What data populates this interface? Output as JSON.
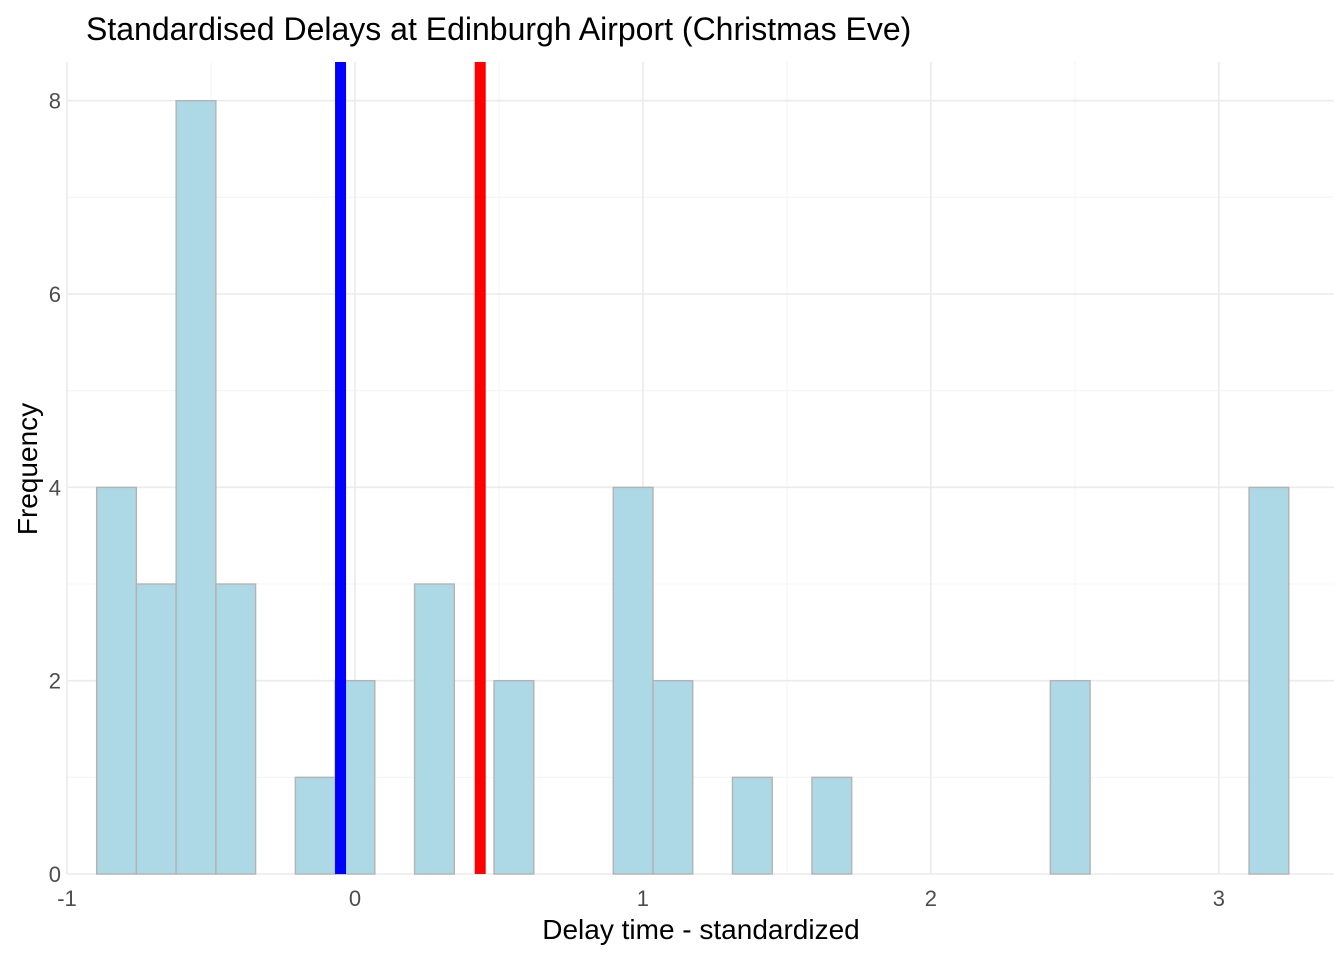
{
  "chart_data": {
    "type": "histogram",
    "title": "Standardised Delays at Edinburgh Airport (Christmas Eve)",
    "xlabel": "Delay time - standardized",
    "ylabel": "Frequency",
    "xlim": [
      -1.0,
      3.4
    ],
    "ylim": [
      0,
      8.4
    ],
    "x_ticks": [
      -1,
      0,
      1,
      2,
      3
    ],
    "x_tick_labels": [
      "-1",
      "0",
      "1",
      "2",
      "3"
    ],
    "y_ticks": [
      0,
      2,
      4,
      6,
      8
    ],
    "y_tick_labels": [
      "0",
      "2",
      "4",
      "6",
      "8"
    ],
    "grid": true,
    "bin_width": 0.138,
    "bins": [
      {
        "start": -0.897,
        "count": 4
      },
      {
        "start": -0.759,
        "count": 3
      },
      {
        "start": -0.621,
        "count": 8
      },
      {
        "start": -0.483,
        "count": 3
      },
      {
        "start": -0.345,
        "count": 0
      },
      {
        "start": -0.207,
        "count": 1
      },
      {
        "start": -0.069,
        "count": 2
      },
      {
        "start": 0.069,
        "count": 0
      },
      {
        "start": 0.207,
        "count": 3
      },
      {
        "start": 0.345,
        "count": 0
      },
      {
        "start": 0.483,
        "count": 2
      },
      {
        "start": 0.621,
        "count": 0
      },
      {
        "start": 0.759,
        "count": 0
      },
      {
        "start": 0.897,
        "count": 4
      },
      {
        "start": 1.035,
        "count": 2
      },
      {
        "start": 1.173,
        "count": 0
      },
      {
        "start": 1.311,
        "count": 1
      },
      {
        "start": 1.449,
        "count": 0
      },
      {
        "start": 1.587,
        "count": 1
      },
      {
        "start": 1.725,
        "count": 0
      },
      {
        "start": 1.863,
        "count": 0
      },
      {
        "start": 2.001,
        "count": 0
      },
      {
        "start": 2.139,
        "count": 0
      },
      {
        "start": 2.277,
        "count": 0
      },
      {
        "start": 2.415,
        "count": 2
      },
      {
        "start": 2.553,
        "count": 0
      },
      {
        "start": 2.691,
        "count": 0
      },
      {
        "start": 2.829,
        "count": 0
      },
      {
        "start": 2.967,
        "count": 0
      },
      {
        "start": 3.105,
        "count": 4
      }
    ],
    "vlines": [
      {
        "x": -0.05,
        "color": "#0000ff"
      },
      {
        "x": 0.435,
        "color": "#ff0000"
      }
    ],
    "colors": {
      "bar_fill": "#add8e6",
      "bar_stroke": "#b3b3b3",
      "grid_major": "#ebebeb",
      "grid_minor": "#f5f5f5"
    }
  }
}
